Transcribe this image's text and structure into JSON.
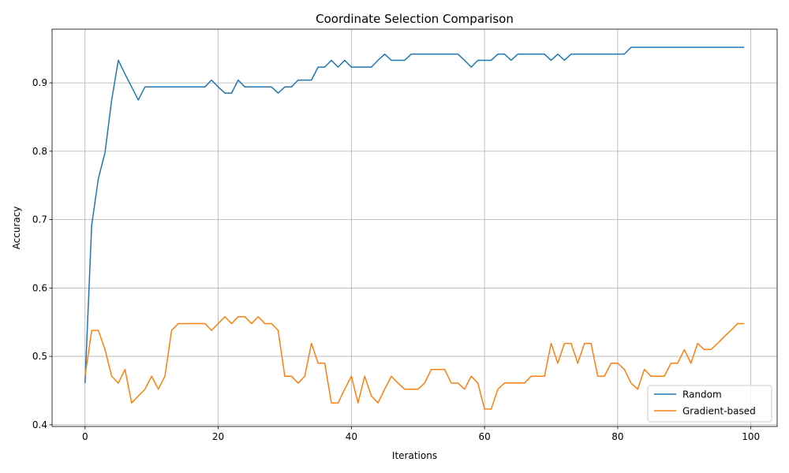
{
  "chart_data": {
    "type": "line",
    "title": "Coordinate Selection Comparison",
    "xlabel": "Iterations",
    "ylabel": "Accuracy",
    "xlim": [
      -4.95,
      103.95
    ],
    "ylim": [
      0.3975,
      0.9785
    ],
    "xticks": [
      0,
      20,
      40,
      60,
      80,
      100
    ],
    "yticks": [
      0.4,
      0.5,
      0.6,
      0.7,
      0.8,
      0.9
    ],
    "grid": true,
    "legend_position": "lower-right",
    "series": [
      {
        "name": "Random",
        "color": "#1f77b4",
        "x": [
          0,
          1,
          2,
          3,
          4,
          5,
          6,
          7,
          8,
          9,
          10,
          11,
          12,
          13,
          14,
          15,
          16,
          17,
          18,
          19,
          20,
          21,
          22,
          23,
          24,
          25,
          26,
          27,
          28,
          29,
          30,
          31,
          32,
          33,
          34,
          35,
          36,
          37,
          38,
          39,
          40,
          41,
          42,
          43,
          44,
          45,
          46,
          47,
          48,
          49,
          50,
          51,
          52,
          53,
          54,
          55,
          56,
          57,
          58,
          59,
          60,
          61,
          62,
          63,
          64,
          65,
          66,
          67,
          68,
          69,
          70,
          71,
          72,
          73,
          74,
          75,
          76,
          77,
          78,
          79,
          80,
          81,
          82,
          83,
          84,
          85,
          86,
          87,
          88,
          89,
          90,
          91,
          92,
          93,
          94,
          95,
          96,
          97,
          98,
          99
        ],
        "values": [
          0.461,
          0.692,
          0.76,
          0.798,
          0.875,
          0.933,
          0.913,
          0.894,
          0.875,
          0.894,
          0.894,
          0.894,
          0.894,
          0.894,
          0.894,
          0.894,
          0.894,
          0.894,
          0.894,
          0.904,
          0.894,
          0.885,
          0.885,
          0.904,
          0.894,
          0.894,
          0.894,
          0.894,
          0.894,
          0.885,
          0.894,
          0.894,
          0.904,
          0.904,
          0.904,
          0.923,
          0.923,
          0.933,
          0.923,
          0.933,
          0.923,
          0.923,
          0.923,
          0.923,
          0.933,
          0.942,
          0.933,
          0.933,
          0.933,
          0.942,
          0.942,
          0.942,
          0.942,
          0.942,
          0.942,
          0.942,
          0.942,
          0.933,
          0.923,
          0.933,
          0.933,
          0.933,
          0.942,
          0.942,
          0.933,
          0.942,
          0.942,
          0.942,
          0.942,
          0.942,
          0.933,
          0.942,
          0.933,
          0.942,
          0.942,
          0.942,
          0.942,
          0.942,
          0.942,
          0.942,
          0.942,
          0.942,
          0.952,
          0.952,
          0.952,
          0.952,
          0.952,
          0.952,
          0.952,
          0.952,
          0.952,
          0.952,
          0.952,
          0.952,
          0.952,
          0.952,
          0.952,
          0.952,
          0.952,
          0.952
        ]
      },
      {
        "name": "Gradient-based",
        "color": "#ff7f0e",
        "x": [
          0,
          1,
          2,
          3,
          4,
          5,
          6,
          7,
          8,
          9,
          10,
          11,
          12,
          13,
          14,
          15,
          16,
          17,
          18,
          19,
          20,
          21,
          22,
          23,
          24,
          25,
          26,
          27,
          28,
          29,
          30,
          31,
          32,
          33,
          34,
          35,
          36,
          37,
          38,
          39,
          40,
          41,
          42,
          43,
          44,
          45,
          46,
          47,
          48,
          49,
          50,
          51,
          52,
          53,
          54,
          55,
          56,
          57,
          58,
          59,
          60,
          61,
          62,
          63,
          64,
          65,
          66,
          67,
          68,
          69,
          70,
          71,
          72,
          73,
          74,
          75,
          76,
          77,
          78,
          79,
          80,
          81,
          82,
          83,
          84,
          85,
          86,
          87,
          88,
          89,
          90,
          91,
          92,
          93,
          94,
          95,
          96,
          97,
          98,
          99
        ],
        "values": [
          0.471,
          0.538,
          0.538,
          0.51,
          0.471,
          0.461,
          0.481,
          0.432,
          0.442,
          0.452,
          0.471,
          0.452,
          0.471,
          0.538,
          0.548,
          0.548,
          0.548,
          0.548,
          0.548,
          0.538,
          0.548,
          0.558,
          0.548,
          0.558,
          0.558,
          0.548,
          0.558,
          0.548,
          0.548,
          0.538,
          0.471,
          0.471,
          0.461,
          0.471,
          0.519,
          0.49,
          0.49,
          0.432,
          0.432,
          0.452,
          0.471,
          0.432,
          0.471,
          0.442,
          0.432,
          0.452,
          0.471,
          0.461,
          0.452,
          0.452,
          0.452,
          0.461,
          0.481,
          0.481,
          0.481,
          0.461,
          0.461,
          0.452,
          0.471,
          0.461,
          0.423,
          0.423,
          0.452,
          0.461,
          0.461,
          0.461,
          0.461,
          0.471,
          0.471,
          0.471,
          0.519,
          0.49,
          0.519,
          0.519,
          0.49,
          0.519,
          0.519,
          0.471,
          0.471,
          0.49,
          0.49,
          0.481,
          0.461,
          0.452,
          0.481,
          0.471,
          0.471,
          0.471,
          0.49,
          0.49,
          0.51,
          0.49,
          0.519,
          0.51,
          0.51,
          0.519,
          0.529,
          0.538,
          0.548,
          0.548
        ]
      }
    ]
  }
}
